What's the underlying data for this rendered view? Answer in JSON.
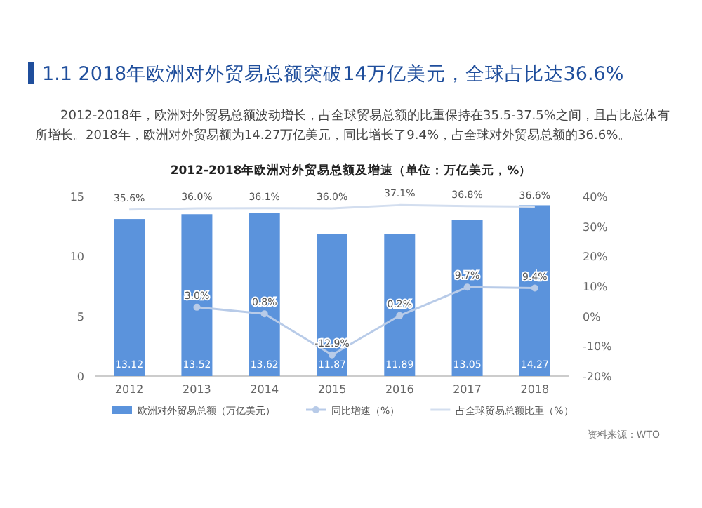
{
  "chart_data": {
    "type": "bar",
    "title": "1.1 2018年欧洲对外贸易总额突破14万亿美元，全球占比达36.6%",
    "subtitle": "2012-2018年，欧洲对外贸易总额波动增长，占全球贸易总额的比重保持在35.5-37.5%之间，且占比总体有所增长。2018年，欧洲对外贸易额为14.27万亿美元，同比增长了9.4%，占全球对外贸易总额的36.6%。",
    "annotations": [
      "2012-2018年欧洲对外贸易总额及增速（单位：万亿美元，%）",
      "资料来源：WTO"
    ],
    "categories": [
      "2012",
      "2013",
      "2014",
      "2015",
      "2016",
      "2017",
      "2018"
    ],
    "series": [
      {
        "name": "欧洲对外贸易总额（万亿美元）",
        "color": "#5b93dc",
        "values": [
          13.12,
          13.52,
          13.62,
          11.87,
          11.89,
          13.05,
          14.27
        ],
        "value_labels": [
          "13.12",
          "13.52",
          "13.62",
          "11.87",
          "11.89",
          "13.05",
          "14.27"
        ]
      },
      {
        "name": "同比增速（%）",
        "type": "line",
        "axis": "y2",
        "color": "#b8cbe8",
        "marker": "circle",
        "values": [
          null,
          3.0,
          0.8,
          -12.9,
          0.2,
          9.7,
          9.4
        ],
        "value_labels": [
          null,
          "3.0%",
          "0.8%",
          "-12.9%",
          "0.2%",
          "9.7%",
          "9.4%"
        ]
      },
      {
        "name": "占全球贸易总额比重（%）",
        "type": "line",
        "axis": "y2",
        "color": "#d3deef",
        "marker": "none",
        "values": [
          35.6,
          36.0,
          36.1,
          36.0,
          37.1,
          36.8,
          36.6
        ],
        "value_labels": [
          "35.6%",
          "36.0%",
          "36.1%",
          "36.0%",
          "37.1%",
          "36.8%",
          "36.6%"
        ]
      }
    ],
    "ylim": [
      0,
      15
    ],
    "yticks": [
      0,
      5,
      10,
      15
    ],
    "y2lim": [
      -20,
      40
    ],
    "y2ticks": [
      {
        "value": -20,
        "label": "-20%"
      },
      {
        "value": -10,
        "label": "-10%"
      },
      {
        "value": 0,
        "label": "0%"
      },
      {
        "value": 10,
        "label": "10%"
      },
      {
        "value": 20,
        "label": "20%"
      },
      {
        "value": 30,
        "label": "30%"
      },
      {
        "value": 40,
        "label": "40%"
      }
    ],
    "legend": "bottom",
    "grid": false
  }
}
